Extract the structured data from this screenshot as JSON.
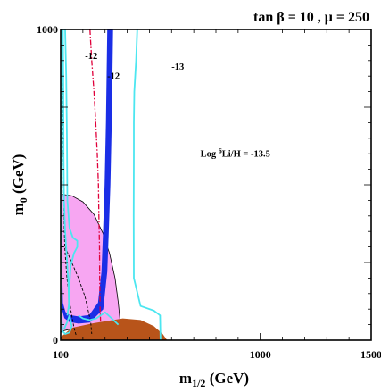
{
  "chart_data": {
    "type": "contour",
    "title": "tan β = 10 , μ = 250",
    "xlabel": "m",
    "xlabel_sub": "1/2",
    "xlabel_unit": " (GeV)",
    "ylabel": "m",
    "ylabel_sub": "0",
    "ylabel_unit": " (GeV)",
    "xlim": [
      100,
      1500
    ],
    "ylim": [
      0,
      1000
    ],
    "x_ticks": [
      {
        "value": 100,
        "label": "100"
      },
      {
        "value": 1000,
        "label": "1000"
      },
      {
        "value": 1500,
        "label": "1500"
      }
    ],
    "y_ticks": [
      {
        "value": 0,
        "label": "0"
      },
      {
        "value": 1000,
        "label": "1000"
      }
    ],
    "annotations": [
      {
        "text": "-12",
        "x": 210,
        "y": 905
      },
      {
        "text": "-12",
        "x": 310,
        "y": 840
      },
      {
        "text": "-13",
        "x": 600,
        "y": 870
      },
      {
        "text_main": "Log ",
        "text_sup": "6",
        "text_rest": "Li/H = -13.5",
        "x": 730,
        "y": 590
      }
    ],
    "colors": {
      "pink_region": "#f7a6f2",
      "brown_region": "#b8541a",
      "blue_band": "#1a2ee6",
      "cyan_contour": "#4ce6f0",
      "red_dashdot": "#e0003a"
    },
    "regions": {
      "pink": [
        [
          100,
          470
        ],
        [
          150,
          465
        ],
        [
          200,
          445
        ],
        [
          250,
          405
        ],
        [
          290,
          345
        ],
        [
          320,
          280
        ],
        [
          345,
          200
        ],
        [
          360,
          120
        ],
        [
          368,
          60
        ],
        [
          370,
          20
        ],
        [
          355,
          10
        ],
        [
          300,
          20
        ],
        [
          240,
          30
        ],
        [
          180,
          35
        ],
        [
          140,
          35
        ],
        [
          110,
          30
        ],
        [
          100,
          25
        ]
      ],
      "brown": [
        [
          100,
          0
        ],
        [
          100,
          10
        ],
        [
          150,
          40
        ],
        [
          250,
          55
        ],
        [
          380,
          70
        ],
        [
          460,
          65
        ],
        [
          520,
          45
        ],
        [
          560,
          20
        ],
        [
          580,
          0
        ]
      ],
      "blue_band_left": [
        [
          312,
          1000
        ],
        [
          310,
          900
        ],
        [
          306,
          700
        ],
        [
          300,
          500
        ],
        [
          293,
          350
        ],
        [
          286,
          220
        ],
        [
          270,
          120
        ],
        [
          230,
          80
        ],
        [
          180,
          75
        ],
        [
          140,
          80
        ],
        [
          120,
          90
        ],
        [
          108,
          120
        ],
        [
          106,
          180
        ]
      ],
      "blue_band_right": [
        [
          334,
          1000
        ],
        [
          332,
          900
        ],
        [
          328,
          700
        ],
        [
          322,
          500
        ],
        [
          315,
          350
        ],
        [
          308,
          220
        ],
        [
          290,
          100
        ],
        [
          230,
          58
        ],
        [
          180,
          55
        ],
        [
          140,
          60
        ],
        [
          118,
          72
        ],
        [
          104,
          110
        ],
        [
          102,
          180
        ]
      ]
    },
    "cyan_lines": [
      [
        [
          120,
          1000
        ],
        [
          125,
          850
        ],
        [
          128,
          650
        ],
        [
          130,
          450
        ],
        [
          140,
          360
        ],
        [
          155,
          330
        ],
        [
          175,
          320
        ],
        [
          175,
          300
        ],
        [
          160,
          280
        ],
        [
          145,
          240
        ],
        [
          140,
          180
        ],
        [
          138,
          120
        ],
        [
          130,
          80
        ]
      ],
      [
        [
          110,
          1000
        ],
        [
          112,
          800
        ],
        [
          113,
          600
        ],
        [
          115,
          450
        ],
        [
          120,
          350
        ],
        [
          128,
          260
        ],
        [
          135,
          180
        ],
        [
          138,
          100
        ]
      ],
      [
        [
          445,
          1000
        ],
        [
          440,
          900
        ],
        [
          432,
          800
        ],
        [
          430,
          700
        ],
        [
          430,
          600
        ],
        [
          429,
          400
        ],
        [
          430,
          200
        ],
        [
          460,
          110
        ],
        [
          520,
          95
        ],
        [
          548,
          80
        ],
        [
          550,
          0
        ]
      ],
      [
        [
          102,
          1000
        ],
        [
          103,
          500
        ],
        [
          104,
          150
        ],
        [
          105,
          60
        ],
        [
          108,
          30
        ],
        [
          120,
          20
        ],
        [
          140,
          25
        ],
        [
          150,
          45
        ],
        [
          140,
          80
        ],
        [
          130,
          60
        ],
        [
          115,
          35
        ]
      ],
      [
        [
          180,
          80
        ],
        [
          200,
          70
        ],
        [
          230,
          65
        ],
        [
          260,
          70
        ],
        [
          300,
          90
        ],
        [
          330,
          70
        ],
        [
          360,
          50
        ]
      ]
    ],
    "black_dashed": [
      [
        [
          108,
          1000
        ],
        [
          109,
          800
        ],
        [
          111,
          600
        ],
        [
          114,
          420
        ],
        [
          118,
          300
        ],
        [
          128,
          200
        ],
        [
          145,
          100
        ],
        [
          160,
          40
        ],
        [
          170,
          15
        ]
      ],
      [
        [
          100,
          300
        ],
        [
          120,
          300
        ],
        [
          150,
          250
        ],
        [
          180,
          200
        ],
        [
          210,
          140
        ],
        [
          235,
          60
        ],
        [
          240,
          20
        ]
      ]
    ],
    "red_dashdot": [
      [
        232,
        1000
      ],
      [
        240,
        900
      ],
      [
        250,
        800
      ],
      [
        258,
        700
      ],
      [
        265,
        600
      ],
      [
        270,
        500
      ],
      [
        272,
        400
      ],
      [
        275,
        300
      ],
      [
        276,
        200
      ],
      [
        278,
        100
      ],
      [
        280,
        60
      ]
    ]
  }
}
